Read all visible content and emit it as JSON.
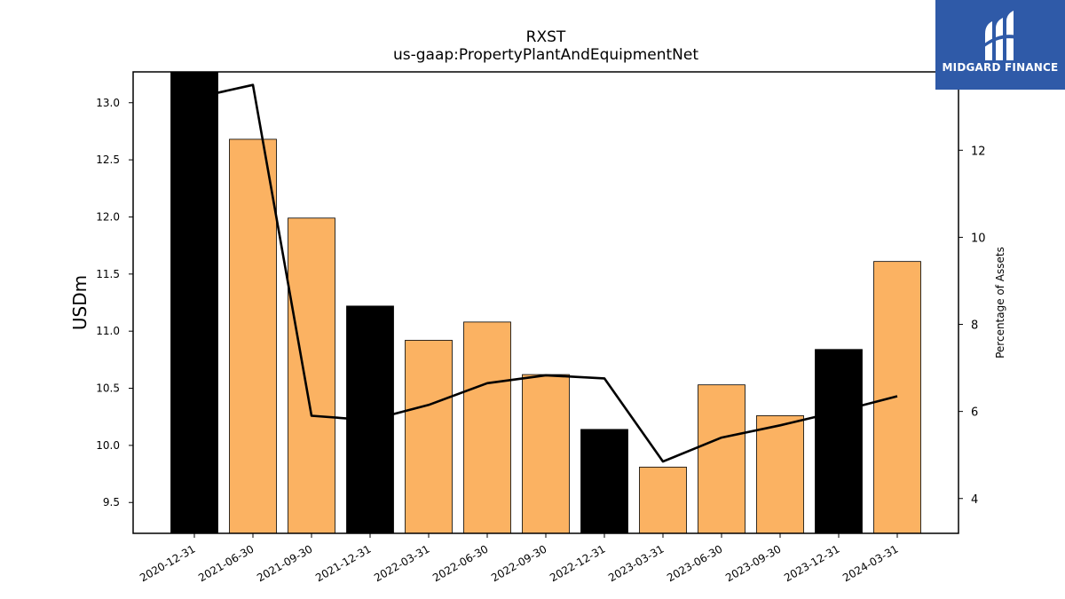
{
  "title": "RXST",
  "subtitle": "us-gaap:PropertyPlantAndEquipmentNet",
  "brand": {
    "name": "MIDGARD FINANCE",
    "icon": "midgard-logo-icon",
    "background": "#2f5aa8"
  },
  "colors": {
    "bar_quarter": "#fbb262",
    "bar_year_end": "#000000",
    "line": "#000000"
  },
  "chart_data": {
    "type": "bar",
    "categories": [
      "2020-12-31",
      "2021-06-30",
      "2021-09-30",
      "2021-12-31",
      "2022-03-31",
      "2022-06-30",
      "2022-09-30",
      "2022-12-31",
      "2023-03-31",
      "2023-06-30",
      "2023-09-30",
      "2023-12-31",
      "2024-03-31"
    ],
    "series": [
      {
        "values": [
          13.27,
          12.68,
          11.99,
          11.22,
          10.92,
          11.08,
          10.62,
          10.14,
          9.81,
          10.53,
          10.26,
          10.84,
          11.61
        ]
      },
      {
        "values": [
          13.2,
          13.5,
          5.9,
          5.8,
          6.15,
          6.65,
          6.83,
          6.76,
          4.85,
          5.4,
          5.68,
          6.0,
          6.35
        ]
      }
    ],
    "year_end_flags": [
      true,
      false,
      false,
      true,
      false,
      false,
      false,
      true,
      false,
      false,
      false,
      true,
      false
    ],
    "ylabel": "USDm",
    "y2label": "Percentage of Assets",
    "ylim": [
      9.23,
      13.27
    ],
    "y2lim": [
      3.2,
      13.8
    ],
    "yticks": [
      "9.5",
      "10.0",
      "10.5",
      "11.0",
      "11.5",
      "12.0",
      "12.5",
      "13.0"
    ],
    "y2ticks": [
      "4",
      "6",
      "8",
      "10",
      "12"
    ],
    "grid": false,
    "legend": "none"
  }
}
